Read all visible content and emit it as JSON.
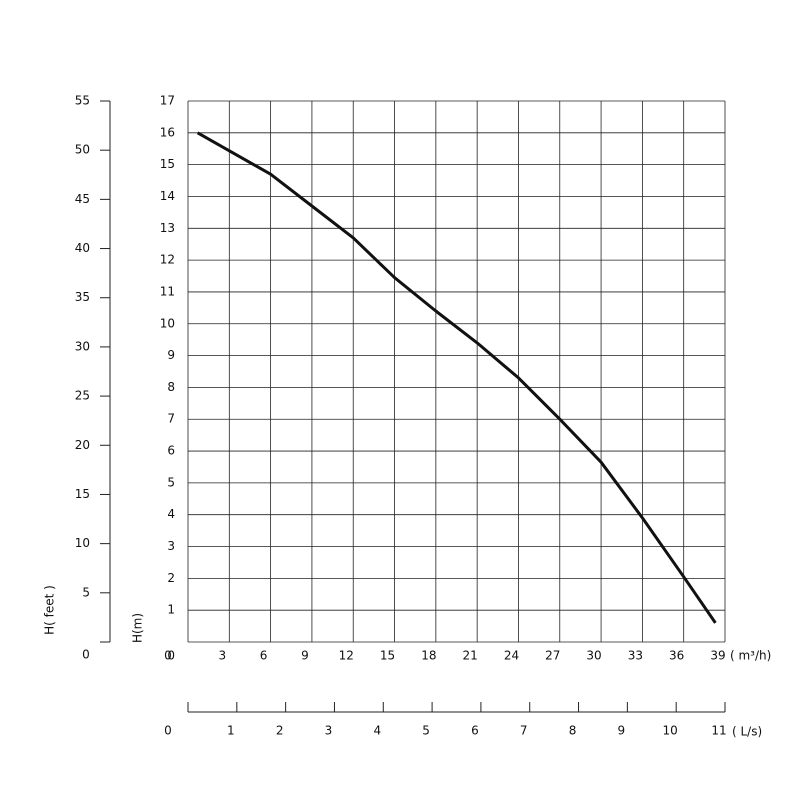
{
  "chart_data": {
    "type": "line",
    "xlabel": "( m³/h)",
    "ylabel": "H(m)",
    "y2label": "H( feet )",
    "x2label": "( L/s)",
    "xlim": [
      0,
      39
    ],
    "xticks": [
      0,
      3,
      6,
      9,
      12,
      15,
      18,
      21,
      24,
      27,
      30,
      33,
      36,
      39
    ],
    "ylim": [
      0,
      17
    ],
    "yticks": [
      0,
      1,
      2,
      3,
      4,
      5,
      6,
      7,
      8,
      9,
      10,
      11,
      12,
      13,
      14,
      15,
      16,
      17
    ],
    "y2lim": [
      0,
      55
    ],
    "y2ticks": [
      0,
      5,
      10,
      15,
      20,
      25,
      30,
      35,
      40,
      45,
      50,
      55
    ],
    "x2lim": [
      0,
      11
    ],
    "x2ticks": [
      0,
      1,
      2,
      3,
      4,
      5,
      6,
      7,
      8,
      9,
      10,
      11
    ],
    "grid": true,
    "series": [
      {
        "color": "#111111",
        "x": [
          0.7,
          6,
          9,
          12,
          15,
          18,
          21,
          24,
          27,
          30,
          33,
          36,
          38.3
        ],
        "values": [
          16.0,
          14.7,
          13.7,
          12.7,
          11.45,
          10.4,
          9.4,
          8.3,
          7.0,
          5.65,
          3.9,
          2.05,
          0.6
        ]
      }
    ]
  }
}
